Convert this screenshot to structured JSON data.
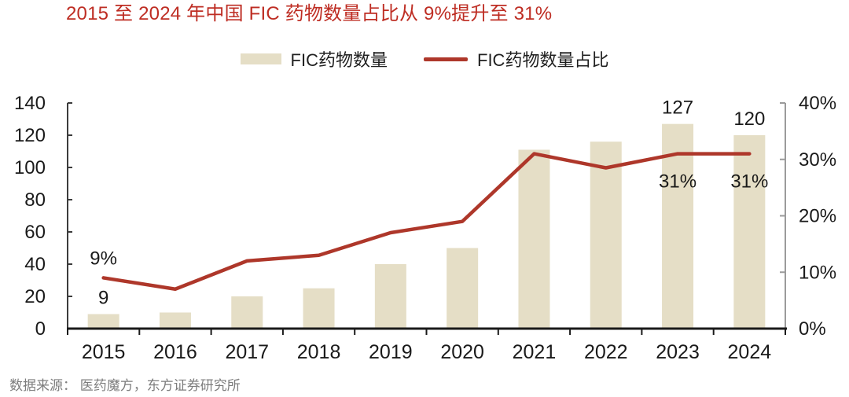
{
  "title": {
    "text": "2015 至 2024 年中国 FIC 药物数量占比从 9%提升至 31%"
  },
  "legend": {
    "items": [
      {
        "label": "FIC药物数量",
        "swatch": "bar"
      },
      {
        "label": "FIC药物数量占比",
        "swatch": "line"
      }
    ]
  },
  "colors": {
    "bar": "#e5dec6",
    "line": "#ae372a",
    "title_red": "#be2d23",
    "axis_dark": "#3c3c3c",
    "axis_black": "#1a1a1a",
    "axis_gray": "#9b9b9b",
    "text": "#1a1a1a",
    "source_gray": "#7d7d7d"
  },
  "chart_data": {
    "type": "bar",
    "categories": [
      "2015",
      "2016",
      "2017",
      "2018",
      "2019",
      "2020",
      "2021",
      "2022",
      "2023",
      "2024"
    ],
    "series": [
      {
        "name": "FIC药物数量",
        "type": "bar",
        "axis": "left",
        "values": [
          9,
          10,
          20,
          25,
          40,
          50,
          111,
          116,
          127,
          120
        ]
      },
      {
        "name": "FIC药物数量占比",
        "type": "line",
        "axis": "right",
        "unit": "%",
        "values": [
          9,
          7,
          12,
          13,
          17,
          19,
          31,
          28.5,
          31,
          31
        ]
      }
    ],
    "left_axis": {
      "min": 0,
      "max": 140,
      "step": 20,
      "tick_labels": [
        "0",
        "20",
        "40",
        "60",
        "80",
        "100",
        "120",
        "140"
      ]
    },
    "right_axis": {
      "min": 0,
      "max": 40,
      "step": 10,
      "tick_labels": [
        "0%",
        "10%",
        "20%",
        "30%",
        "40%"
      ]
    },
    "grid": false,
    "legend_position": "top",
    "annotations": [
      {
        "category": "2015",
        "target": "line",
        "text": "9%",
        "placement": "above"
      },
      {
        "category": "2015",
        "target": "bar",
        "text": "9",
        "placement": "above"
      },
      {
        "category": "2023",
        "target": "bar",
        "text": "127",
        "placement": "above"
      },
      {
        "category": "2023",
        "target": "line",
        "text": "31%",
        "placement": "below"
      },
      {
        "category": "2024",
        "target": "bar",
        "text": "120",
        "placement": "above"
      },
      {
        "category": "2024",
        "target": "line",
        "text": "31%",
        "placement": "below"
      }
    ]
  },
  "footer": {
    "source": "数据来源： 医药魔方，东方证券研究所"
  }
}
